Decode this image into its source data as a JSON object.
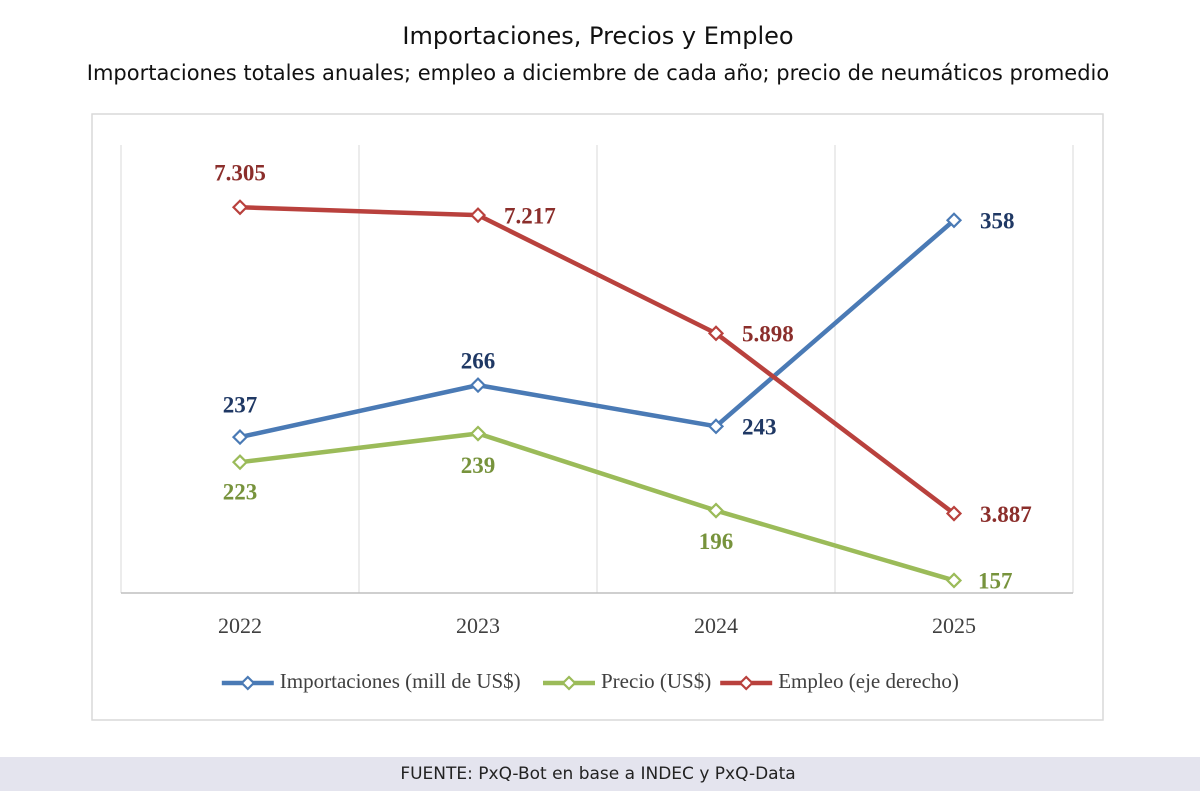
{
  "chart_data": {
    "type": "line",
    "title": "Importaciones, Precios y Empleo",
    "subtitle": "Importaciones totales anuales; empleo a diciembre de cada año; precio de neumáticos promedio",
    "source": "FUENTE: PxQ-Bot en base a INDEC y PxQ-Data",
    "categories": [
      "2022",
      "2023",
      "2024",
      "2025"
    ],
    "ylim": [
      150,
      400
    ],
    "y2lim": [
      3000,
      8000
    ],
    "legend": "bottom",
    "series": [
      {
        "name": "Importaciones (mill de US$)",
        "color": "#4a7ab5",
        "values": [
          237,
          266,
          243,
          358
        ]
      },
      {
        "name": "Precio (US$)",
        "color": "#9bbb59",
        "values": [
          223,
          239,
          196,
          157
        ]
      },
      {
        "name": "Empleo (eje derecho)",
        "color": "#b9413d",
        "axis": "y2",
        "values": [
          7305,
          7217,
          5898,
          3887
        ],
        "value_labels": [
          "7.305",
          "7.217",
          "5.898",
          "3.887"
        ]
      }
    ]
  }
}
